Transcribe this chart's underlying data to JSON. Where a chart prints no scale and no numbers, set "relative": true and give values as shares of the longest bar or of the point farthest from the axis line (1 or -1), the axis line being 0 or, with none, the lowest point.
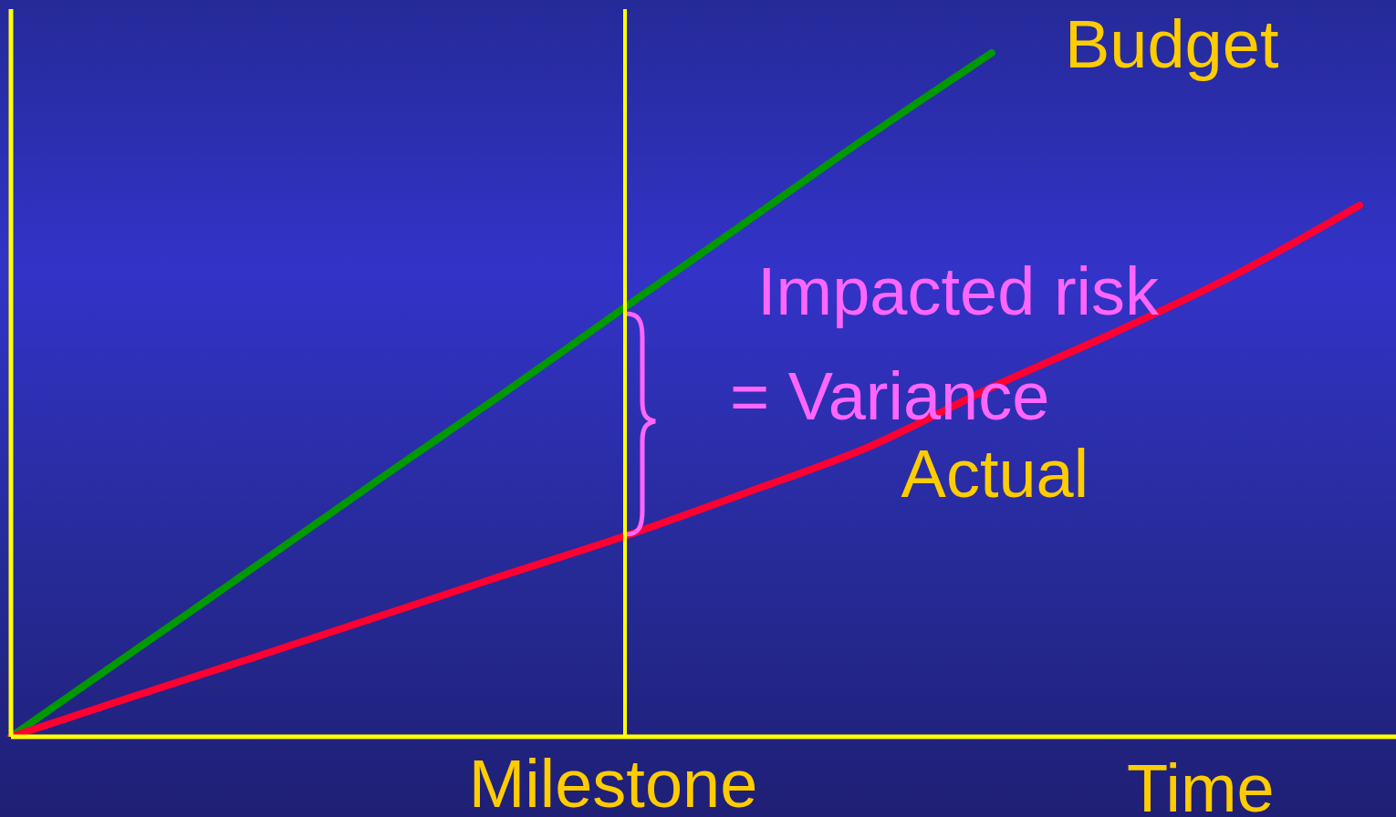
{
  "chart_data": {
    "type": "line",
    "relative": true,
    "xlabel": "Time",
    "categories": [
      null,
      null,
      null,
      null,
      null,
      null,
      null,
      null,
      null,
      null,
      null,
      null
    ],
    "series": [
      {
        "name": "Budget",
        "color": "#009900",
        "values": [
          0,
          0.125,
          0.25,
          0.376,
          0.5,
          0.627,
          0.753,
          0.879,
          1.0,
          null,
          null,
          null
        ]
      },
      {
        "name": "Actual",
        "color": "#ff0033",
        "values": [
          0,
          0.059,
          0.117,
          0.176,
          0.235,
          0.293,
          0.357,
          0.424,
          0.511,
          0.591,
          0.677,
          0.777
        ]
      }
    ],
    "annotations": [
      "Impacted risk",
      "= Variance",
      "Milestone"
    ],
    "grid": false,
    "legend": false,
    "marker": "none",
    "line_style": "solid"
  }
}
